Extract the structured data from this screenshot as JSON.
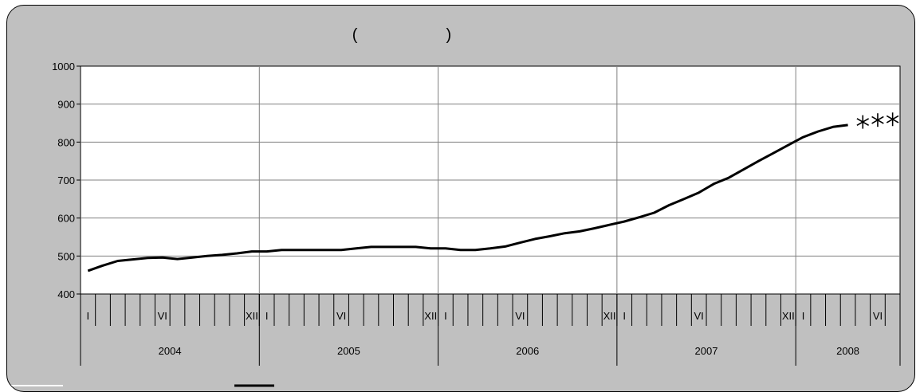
{
  "title": "(                    )",
  "chart_data": {
    "type": "line",
    "ylim": [
      400,
      1000
    ],
    "y_ticks": [
      "1000",
      "900",
      "800",
      "700",
      "600",
      "500",
      "400"
    ],
    "y_tick_values": [
      1000,
      900,
      800,
      700,
      600,
      500,
      400
    ],
    "grid": true,
    "month_labels": {
      "0": "I",
      "5": "VI",
      "11": "XII",
      "12": "I",
      "17": "VI",
      "23": "XII",
      "24": "I",
      "29": "VI",
      "35": "XII",
      "36": "I",
      "41": "VI",
      "47": "XII",
      "48": "I",
      "53": "VI"
    },
    "years": [
      "2004",
      "2005",
      "2006",
      "2007",
      "2008"
    ],
    "series": [
      {
        "values": [
          461,
          475,
          487,
          491,
          495,
          496,
          492,
          496,
          500,
          503,
          507,
          512,
          512,
          516,
          516,
          516,
          516,
          516,
          520,
          524,
          524,
          524,
          524,
          520,
          520,
          516,
          516,
          520,
          525,
          535,
          545,
          552,
          560,
          565,
          573,
          582,
          591,
          602,
          614,
          634,
          650,
          667,
          690,
          706,
          728,
          750,
          771,
          792,
          813,
          828,
          840,
          845
        ],
        "color": "#000000"
      },
      {
        "marker": "asterisk",
        "start_index": 52,
        "values": [
          853,
          858,
          860
        ],
        "color": "#000000"
      }
    ]
  }
}
